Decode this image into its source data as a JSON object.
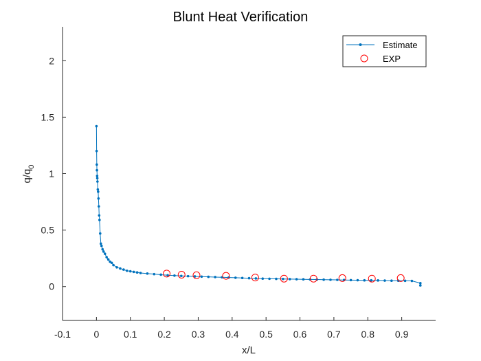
{
  "chart_data": {
    "type": "line",
    "title": "Blunt Heat Verification",
    "xlabel": "x/L",
    "ylabel_base": "q/q",
    "ylabel_sub": "0",
    "xlim": [
      -0.1,
      1.0
    ],
    "ylim": [
      -0.3,
      2.3
    ],
    "xticks": [
      -0.1,
      0,
      0.1,
      0.2,
      0.3,
      0.4,
      0.5,
      0.6,
      0.7,
      0.8,
      0.9
    ],
    "xtick_labels": [
      "-0.1",
      "0",
      "0.1",
      "0.2",
      "0.3",
      "0.4",
      "0.5",
      "0.6",
      "0.7",
      "0.8",
      "0.9"
    ],
    "yticks": [
      0,
      0.5,
      1,
      1.5,
      2
    ],
    "ytick_labels": [
      "0",
      "0.5",
      "1",
      "1.5",
      "2"
    ],
    "grid": false,
    "legend_position": "top-right",
    "series": [
      {
        "name": "Estimate",
        "color": "#0072BD",
        "marker": "dot",
        "x": [
          0.0,
          0.0005,
          0.001,
          0.0015,
          0.002,
          0.0025,
          0.003,
          0.004,
          0.005,
          0.006,
          0.007,
          0.008,
          0.009,
          0.011,
          0.013,
          0.015,
          0.018,
          0.021,
          0.025,
          0.03,
          0.035,
          0.04,
          0.045,
          0.05,
          0.06,
          0.07,
          0.08,
          0.09,
          0.1,
          0.11,
          0.12,
          0.13,
          0.15,
          0.17,
          0.19,
          0.21,
          0.23,
          0.25,
          0.27,
          0.29,
          0.31,
          0.33,
          0.35,
          0.37,
          0.39,
          0.41,
          0.43,
          0.45,
          0.47,
          0.49,
          0.51,
          0.53,
          0.55,
          0.57,
          0.59,
          0.61,
          0.63,
          0.65,
          0.67,
          0.69,
          0.71,
          0.73,
          0.75,
          0.77,
          0.79,
          0.81,
          0.83,
          0.85,
          0.87,
          0.89,
          0.91,
          0.93,
          0.955,
          0.955
        ],
        "y": [
          1.42,
          1.2,
          1.08,
          1.03,
          0.98,
          0.96,
          0.93,
          0.86,
          0.84,
          0.78,
          0.71,
          0.63,
          0.59,
          0.47,
          0.38,
          0.36,
          0.33,
          0.31,
          0.29,
          0.26,
          0.24,
          0.22,
          0.21,
          0.19,
          0.17,
          0.16,
          0.15,
          0.14,
          0.135,
          0.13,
          0.125,
          0.12,
          0.115,
          0.11,
          0.105,
          0.1,
          0.097,
          0.094,
          0.092,
          0.09,
          0.088,
          0.086,
          0.084,
          0.082,
          0.08,
          0.078,
          0.076,
          0.074,
          0.072,
          0.07,
          0.069,
          0.068,
          0.067,
          0.066,
          0.065,
          0.064,
          0.063,
          0.062,
          0.061,
          0.06,
          0.059,
          0.058,
          0.057,
          0.056,
          0.055,
          0.055,
          0.054,
          0.053,
          0.052,
          0.052,
          0.051,
          0.05,
          0.03,
          0.01
        ]
      },
      {
        "name": "EXP",
        "color": "#FF0000",
        "marker": "open-circle",
        "x": [
          0.207,
          0.251,
          0.295,
          0.382,
          0.468,
          0.553,
          0.64,
          0.725,
          0.812,
          0.897
        ],
        "y": [
          0.115,
          0.105,
          0.1,
          0.095,
          0.08,
          0.07,
          0.07,
          0.075,
          0.07,
          0.075
        ]
      }
    ]
  }
}
